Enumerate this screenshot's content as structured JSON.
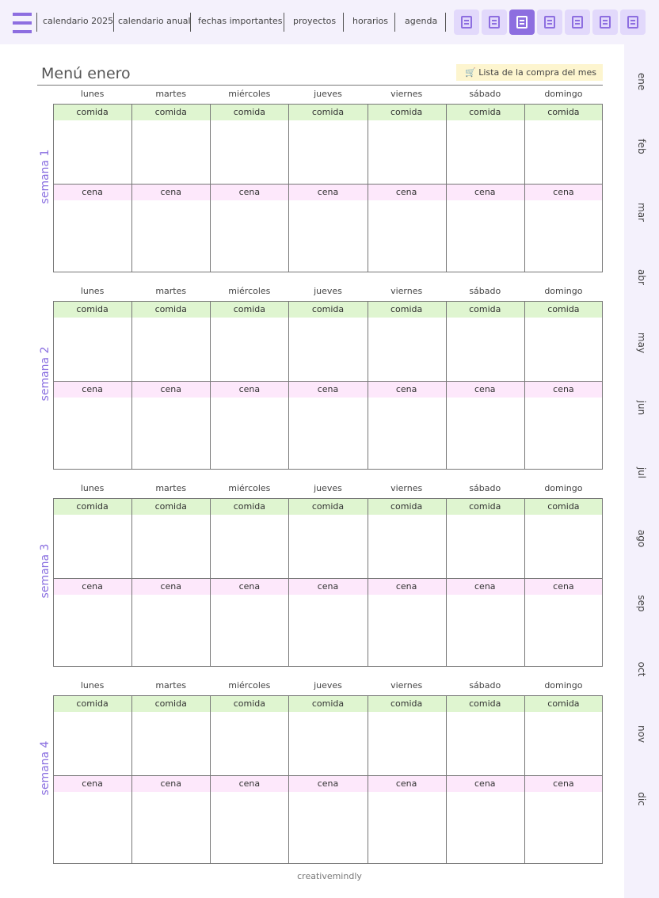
{
  "nav": {
    "links": [
      "calendario 2025",
      "calendario anual",
      "fechas importantes",
      "proyectos",
      "horarios",
      "agenda"
    ]
  },
  "header": {
    "title": "Menú enero",
    "button": "Lista de la compra del mes"
  },
  "days": [
    "lunes",
    "martes",
    "miércoles",
    "jueves",
    "viernes",
    "sábado",
    "domingo"
  ],
  "meals": [
    "comida",
    "cena"
  ],
  "weeks": [
    "semana 1",
    "semana 2",
    "semana 3",
    "semana 4"
  ],
  "months": [
    "ene",
    "feb",
    "mar",
    "abr",
    "may",
    "jun",
    "jul",
    "ago",
    "sep",
    "oct",
    "nov",
    "dic"
  ],
  "footer": "creativemindly"
}
